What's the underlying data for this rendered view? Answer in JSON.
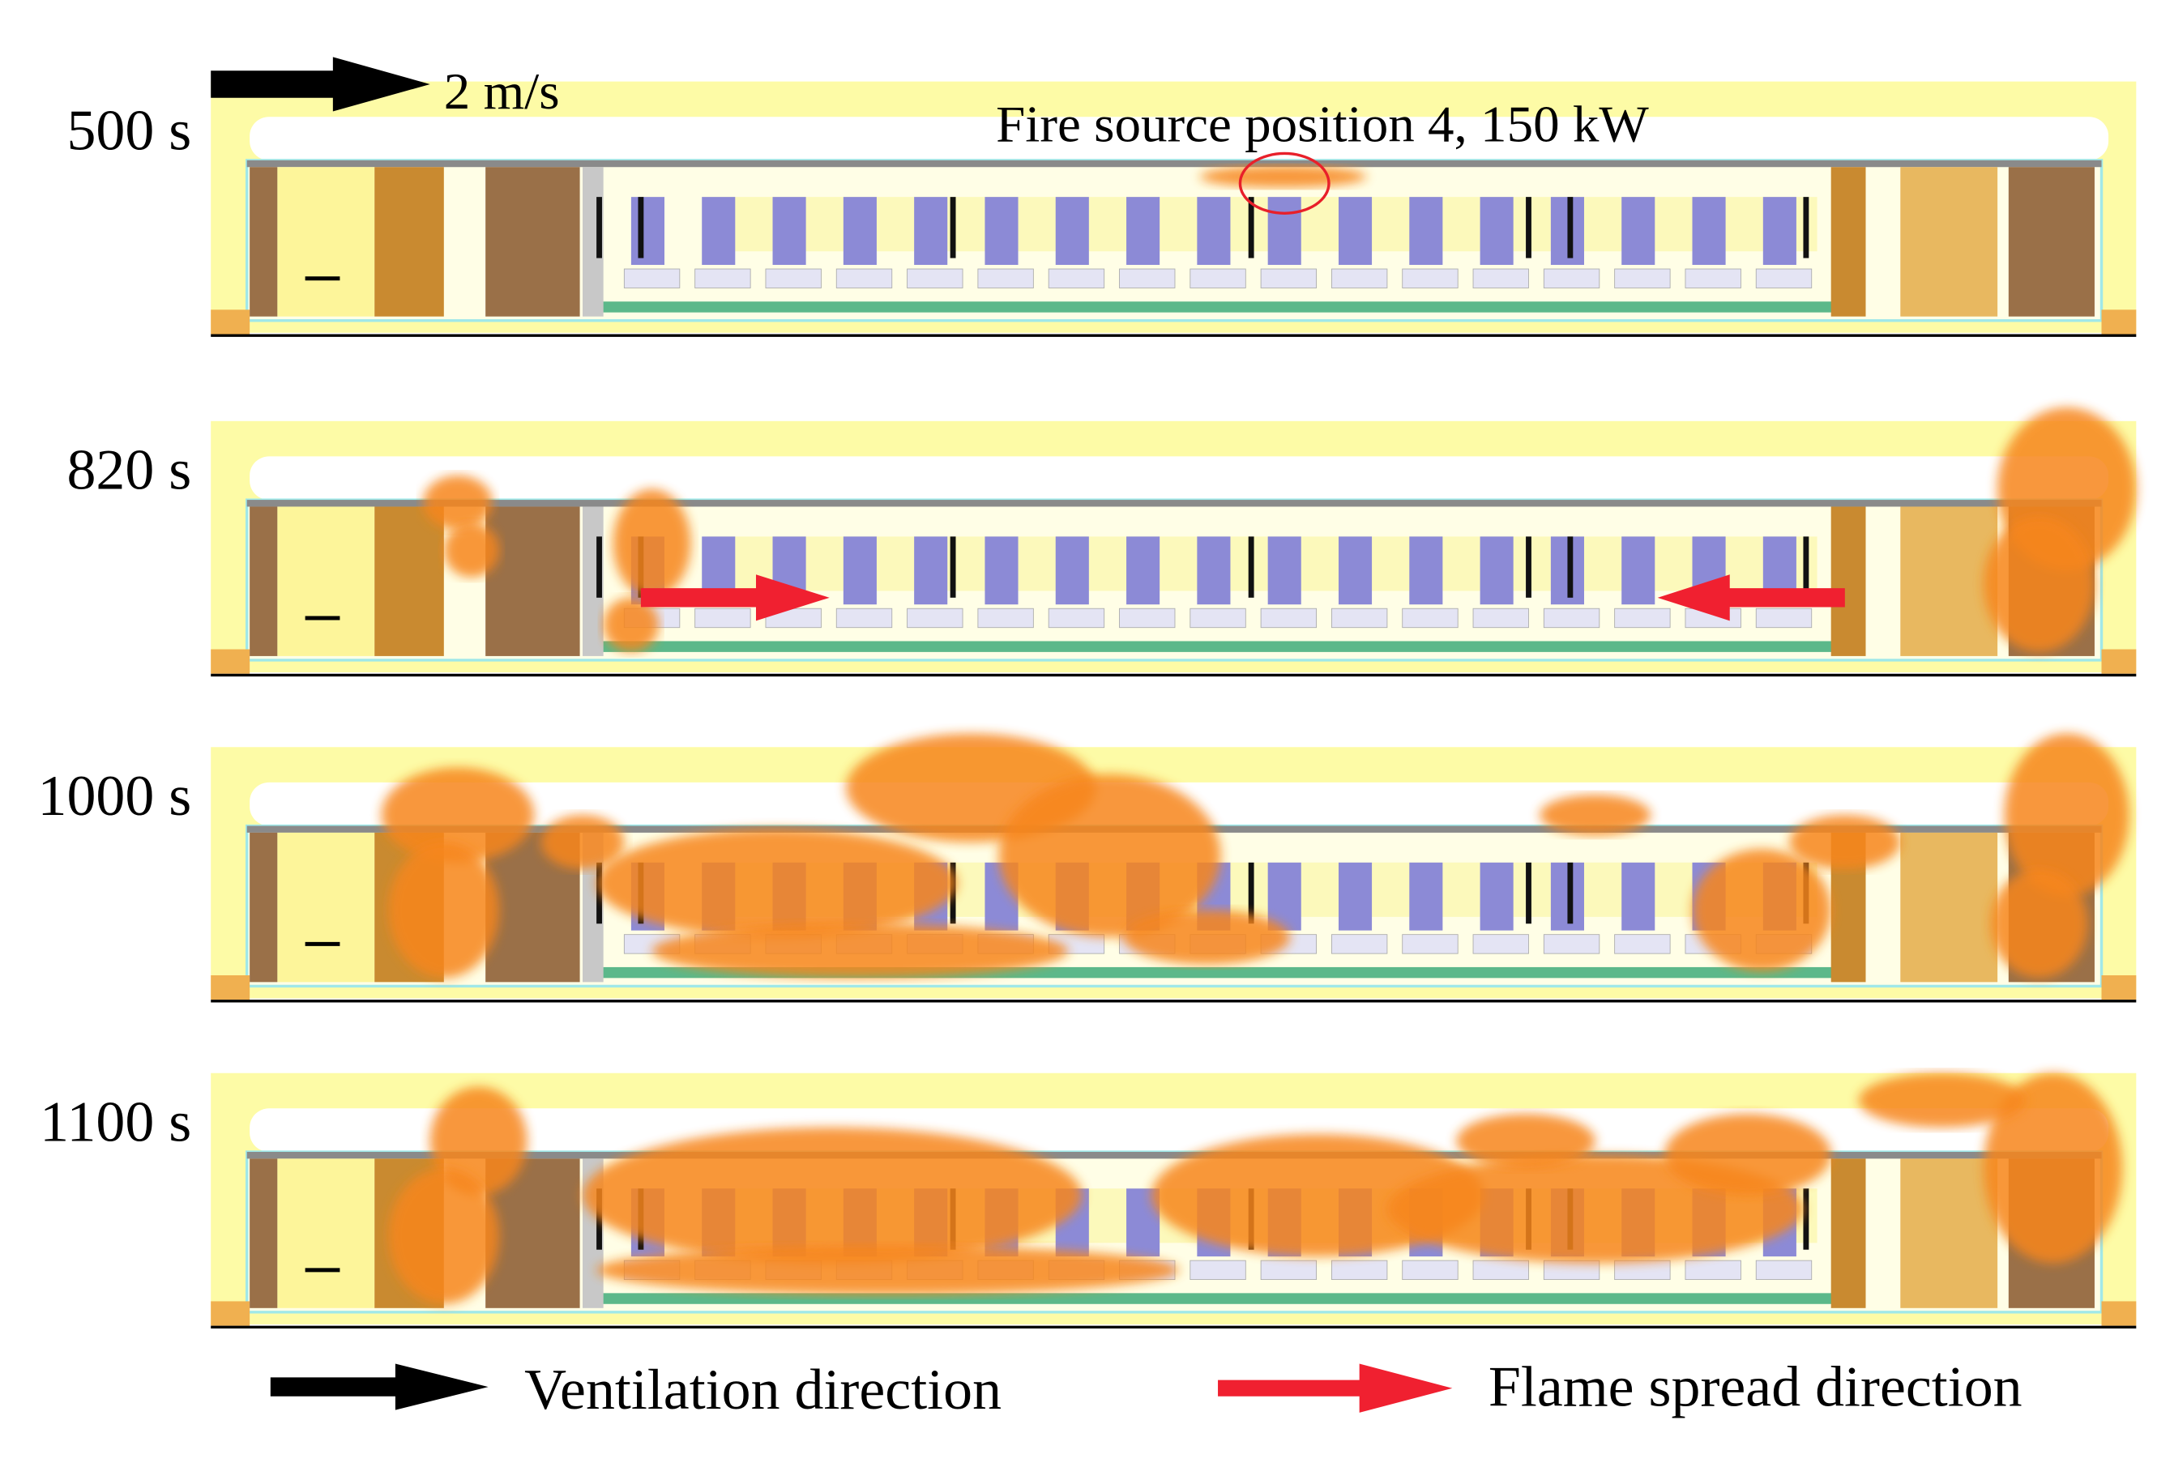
{
  "panels": [
    {
      "time": "500 s"
    },
    {
      "time": "820 s"
    },
    {
      "time": "1000 s"
    },
    {
      "time": "1100 s"
    }
  ],
  "annotations": {
    "wind_speed": "2 m/s",
    "fire_source": "Fire source position 4, 150 kW"
  },
  "legend": {
    "ventilation": "Ventilation direction",
    "flame_spread": "Flame spread direction"
  }
}
